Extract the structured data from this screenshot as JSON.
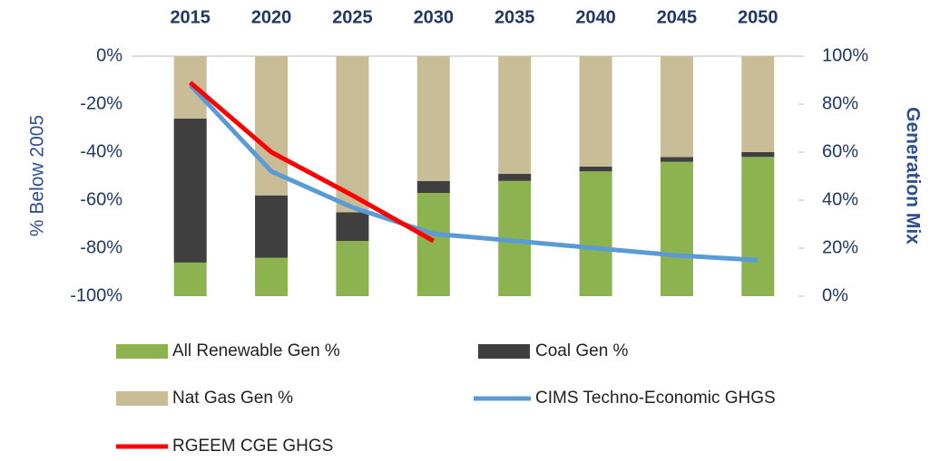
{
  "chart_data": {
    "type": "bar",
    "categories": [
      "2015",
      "2020",
      "2025",
      "2030",
      "2035",
      "2040",
      "2045",
      "2050"
    ],
    "y_label": "% Below 2005",
    "y2_label": "Generation Mix",
    "ylim": [
      -100,
      0
    ],
    "yticks": [
      {
        "value": 0,
        "label": "0%"
      },
      {
        "value": -20,
        "label": "-20%"
      },
      {
        "value": -40,
        "label": "-40%"
      },
      {
        "value": -60,
        "label": "-60%"
      },
      {
        "value": -80,
        "label": "-80%"
      },
      {
        "value": -100,
        "label": "-100%"
      }
    ],
    "y2lim": [
      0,
      100
    ],
    "y2ticks": [
      {
        "value": 100,
        "label": "100%"
      },
      {
        "value": 80,
        "label": "80%"
      },
      {
        "value": 60,
        "label": "60%"
      },
      {
        "value": 40,
        "label": "40%"
      },
      {
        "value": 20,
        "label": "20%"
      },
      {
        "value": 0,
        "label": "0%"
      }
    ],
    "series": [
      {
        "name": "All Renewable Gen %",
        "type": "bar",
        "axis": "y2",
        "color": "#8db350",
        "values": [
          14,
          16,
          23,
          43,
          48,
          52,
          56,
          58
        ]
      },
      {
        "name": "Coal Gen %",
        "type": "bar",
        "axis": "y2",
        "color": "#3f3f3f",
        "values": [
          60,
          26,
          12,
          5,
          3,
          2,
          2,
          2
        ]
      },
      {
        "name": "Nat Gas Gen %",
        "type": "bar",
        "axis": "y2",
        "color": "#c9bd98",
        "values": [
          26,
          58,
          65,
          52,
          49,
          46,
          42,
          40
        ]
      },
      {
        "name": "CIMS Techno-Economic GHGS",
        "type": "line",
        "axis": "y",
        "color": "#5b9bd5",
        "values": [
          -12,
          -48,
          -63,
          -74,
          -77,
          -80,
          -83,
          -85
        ]
      },
      {
        "name": "RGEEM CGE GHGS",
        "type": "line",
        "axis": "y",
        "color": "#ff0000",
        "values": [
          -11,
          -40,
          -58,
          -77,
          null,
          null,
          null,
          null
        ]
      }
    ]
  }
}
